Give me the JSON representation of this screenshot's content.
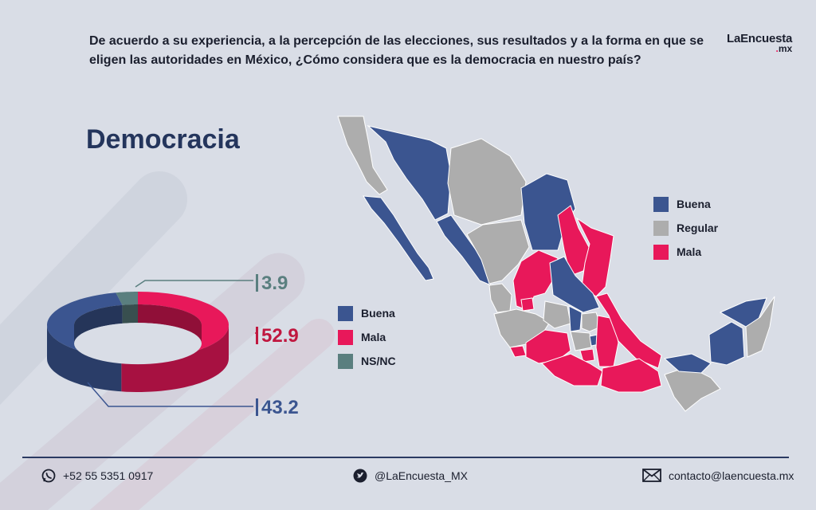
{
  "header": {
    "question": "De acuerdo a su experiencia, a la percepción de las elecciones, sus resultados y a la forma en que se eligen las autoridades en México, ¿Cómo considera que es la democracia en nuestro país?",
    "logo_main": "LaEncuesta",
    "logo_dot": ".",
    "logo_suffix": "mx"
  },
  "chart_data": {
    "type": "pie",
    "style": "3d-donut",
    "title": "Democracia",
    "slices": [
      {
        "label": "Mala",
        "value": 52.9,
        "color": "#e8185a",
        "value_label": "52.9"
      },
      {
        "label": "Buena",
        "value": 43.2,
        "color": "#3b5590",
        "value_label": "43.2"
      },
      {
        "label": "NS/NC",
        "value": 3.9,
        "color": "#5a7f7f",
        "value_label": "3.9"
      }
    ],
    "legend": [
      "Buena",
      "Mala",
      "NS/NC"
    ],
    "legend_placement": "right"
  },
  "map": {
    "legend": [
      {
        "label": "Buena",
        "color": "#3b5590"
      },
      {
        "label": "Regular",
        "color": "#adadad"
      },
      {
        "label": "Mala",
        "color": "#e8185a"
      }
    ]
  },
  "footer": {
    "phone": "+52 55 5351 0917",
    "twitter": "@LaEncuesta_MX",
    "email": "contacto@laencuesta.mx"
  },
  "icons": [
    "whatsapp-icon",
    "twitter-icon",
    "mail-icon"
  ]
}
